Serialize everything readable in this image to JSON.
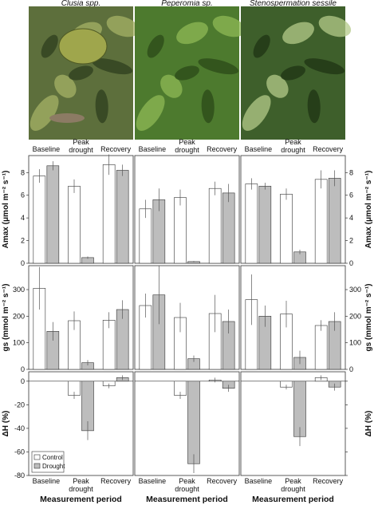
{
  "colors": {
    "control": "#ffffff",
    "drought": "#bdbdbd",
    "axis": "#333333",
    "error": "#555555"
  },
  "species": [
    "Clusia spp.",
    "Peperomia sp.",
    "Stenospermation sessile"
  ],
  "photos": [
    {
      "name": "clusia-photo",
      "bg": "#5d6f3c",
      "hi": "#a5b266",
      "lo": "#2e3d1e"
    },
    {
      "name": "peperomia-photo",
      "bg": "#4d7a2e",
      "hi": "#8fba55",
      "lo": "#2b4a18"
    },
    {
      "name": "stenospermation-photo",
      "bg": "#3e5f2b",
      "hi": "#b4c98a",
      "lo": "#1f3314"
    }
  ],
  "categories": [
    "Baseline",
    "Peak\ndrought",
    "Recovery"
  ],
  "top_categories": [
    "Baseline",
    "Peak\ndrought",
    "Recovery"
  ],
  "xlabel": "Measurement period",
  "legend": [
    "Control",
    "Drought"
  ],
  "chart_data": [
    {
      "type": "bar",
      "metric": "Amax",
      "ylabel": "Amax (μmol m⁻² s⁻¹)",
      "ylim": [
        0,
        9.5
      ],
      "yticks": [
        0,
        2,
        4,
        6,
        8
      ],
      "panels": [
        {
          "species": "Clusia spp.",
          "control": [
            7.7,
            6.8,
            8.7
          ],
          "control_err": [
            0.6,
            0.6,
            0.9
          ],
          "drought": [
            8.6,
            0.5,
            8.2
          ],
          "drought_err": [
            0.4,
            0.1,
            0.5
          ]
        },
        {
          "species": "Peperomia sp.",
          "control": [
            4.8,
            5.8,
            6.6
          ],
          "control_err": [
            0.8,
            0.7,
            0.6
          ],
          "drought": [
            5.6,
            0.15,
            6.2
          ],
          "drought_err": [
            1.0,
            0.05,
            0.8
          ]
        },
        {
          "species": "Stenospermation sessile",
          "control": [
            7.0,
            6.1,
            7.4
          ],
          "control_err": [
            0.5,
            0.5,
            0.8
          ],
          "drought": [
            6.8,
            1.0,
            7.5
          ],
          "drought_err": [
            0.3,
            0.2,
            0.7
          ]
        }
      ]
    },
    {
      "type": "bar",
      "metric": "gs",
      "ylabel": "gs (mmol m⁻² s⁻¹)",
      "ylim": [
        0,
        390
      ],
      "yticks": [
        0,
        100,
        200,
        300
      ],
      "panels": [
        {
          "species": "Clusia spp.",
          "control": [
            305,
            183,
            185
          ],
          "control_err": [
            80,
            35,
            30
          ],
          "drought": [
            143,
            25,
            225
          ],
          "drought_err": [
            35,
            10,
            35
          ]
        },
        {
          "species": "Peperomia sp.",
          "control": [
            240,
            195,
            210
          ],
          "control_err": [
            45,
            55,
            70
          ],
          "drought": [
            280,
            40,
            180
          ],
          "drought_err": [
            110,
            12,
            45
          ]
        },
        {
          "species": "Stenospermation sessile",
          "control": [
            262,
            208,
            165
          ],
          "control_err": [
            95,
            50,
            20
          ],
          "drought": [
            200,
            45,
            180
          ],
          "drought_err": [
            40,
            25,
            35
          ]
        }
      ]
    },
    {
      "type": "bar",
      "metric": "ΔH",
      "ylabel": "ΔH (%)",
      "ylim": [
        -80,
        8
      ],
      "yticks": [
        0,
        -20,
        -40,
        -60,
        -80
      ],
      "panels": [
        {
          "species": "Clusia spp.",
          "control": [
            0,
            -12,
            -4
          ],
          "control_err": [
            0,
            3,
            2
          ],
          "drought": [
            0,
            -42,
            3
          ],
          "drought_err": [
            0,
            8,
            2
          ]
        },
        {
          "species": "Peperomia sp.",
          "control": [
            0,
            -12,
            1
          ],
          "control_err": [
            0,
            3,
            2
          ],
          "drought": [
            0,
            -70,
            -6
          ],
          "drought_err": [
            0,
            8,
            3
          ]
        },
        {
          "species": "Stenospermation sessile",
          "control": [
            0,
            -5,
            3
          ],
          "control_err": [
            0,
            2,
            2
          ],
          "drought": [
            0,
            -47,
            -5
          ],
          "drought_err": [
            0,
            8,
            3
          ]
        }
      ]
    }
  ]
}
